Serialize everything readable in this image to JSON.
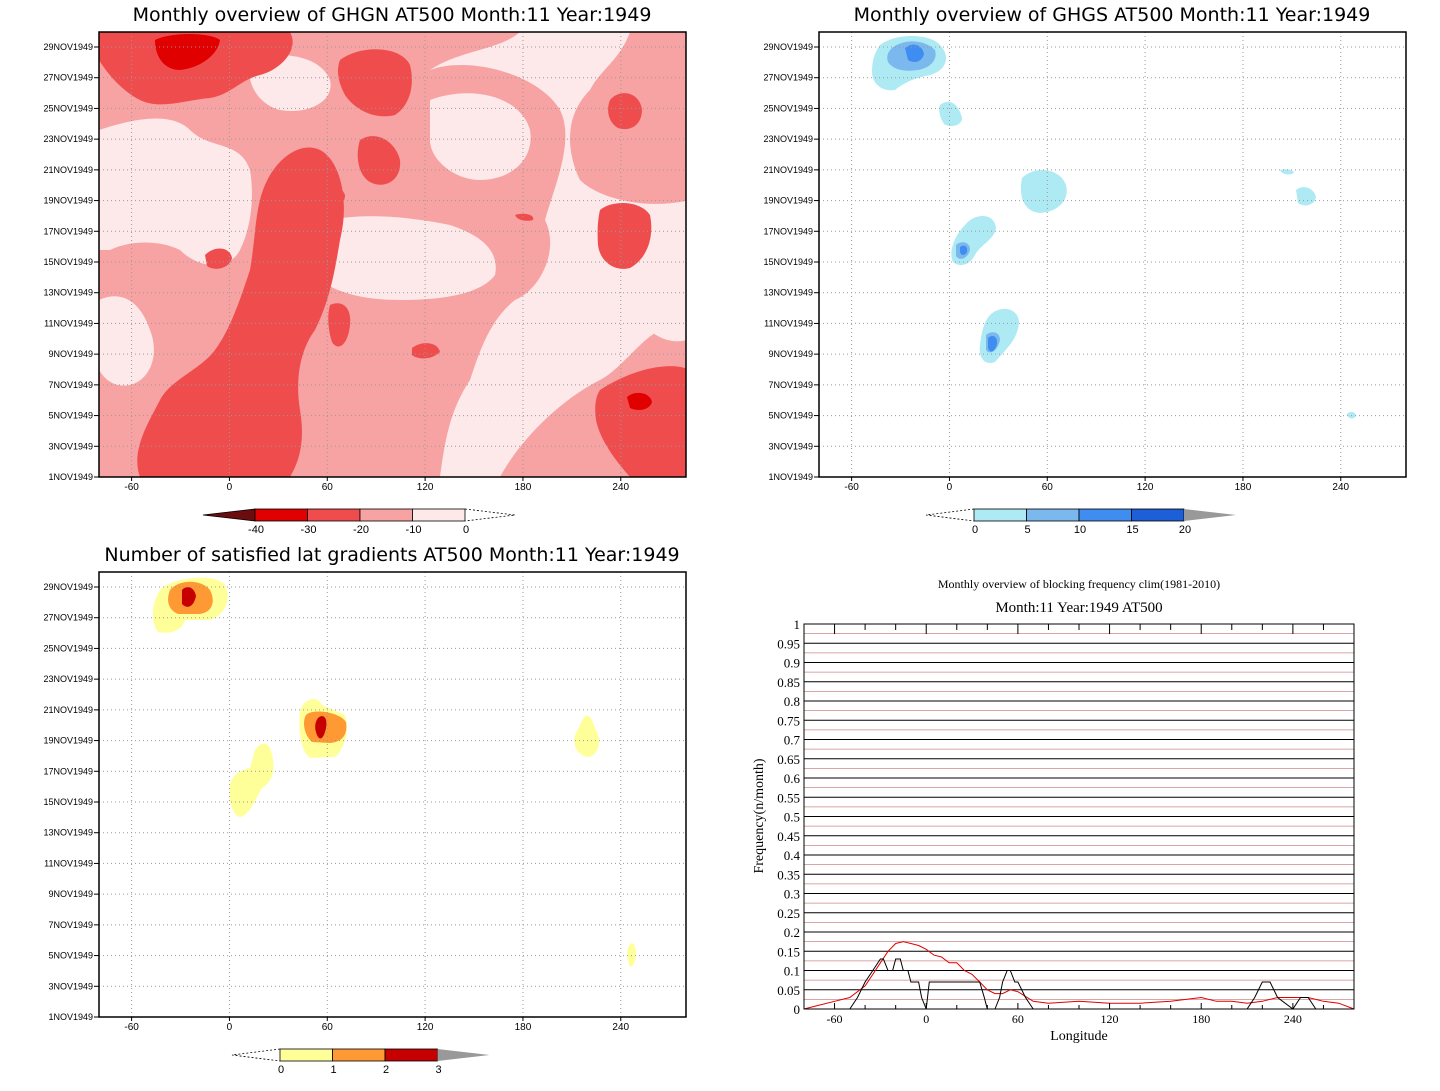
{
  "colors": {
    "ghgn": [
      "#6b0d0d",
      "#e00000",
      "#ef4d4d",
      "#f7a3a3",
      "#fde9e9"
    ],
    "ghgs": [
      "#aeeaf4",
      "#7ab8ee",
      "#3f8df0",
      "#1c5fd6",
      "#999999"
    ],
    "sat": [
      "#ffff99",
      "#ff9933",
      "#c60000",
      "#999999"
    ]
  },
  "chart_data": [
    {
      "type": "heatmap",
      "id": "ghgn",
      "title": "Monthly overview of GHGN AT500 Month:11 Year:1949",
      "y_ticks": [
        "1NOV1949",
        "3NOV1949",
        "5NOV1949",
        "7NOV1949",
        "9NOV1949",
        "11NOV1949",
        "13NOV1949",
        "15NOV1949",
        "17NOV1949",
        "19NOV1949",
        "21NOV1949",
        "23NOV1949",
        "25NOV1949",
        "27NOV1949",
        "29NOV1949"
      ],
      "x_ticks": [
        "-60",
        "0",
        "60",
        "120",
        "180",
        "240"
      ],
      "xlim": [
        -80,
        280
      ],
      "grid": true,
      "colorbar": {
        "ticks": [
          "-40",
          "-30",
          "-20",
          "-10",
          "0"
        ],
        "extend_left": true,
        "extend_right": true
      }
    },
    {
      "type": "heatmap",
      "id": "ghgs",
      "title": "Monthly overview of GHGS AT500 Month:11 Year:1949",
      "y_ticks": [
        "1NOV1949",
        "3NOV1949",
        "5NOV1949",
        "7NOV1949",
        "9NOV1949",
        "11NOV1949",
        "13NOV1949",
        "15NOV1949",
        "17NOV1949",
        "19NOV1949",
        "21NOV1949",
        "23NOV1949",
        "25NOV1949",
        "27NOV1949",
        "29NOV1949"
      ],
      "x_ticks": [
        "-60",
        "0",
        "60",
        "120",
        "180",
        "240"
      ],
      "xlim": [
        -80,
        280
      ],
      "grid": true,
      "colorbar": {
        "ticks": [
          "0",
          "5",
          "10",
          "15",
          "20"
        ],
        "extend_left": true,
        "extend_right": true
      }
    },
    {
      "type": "heatmap",
      "id": "sat",
      "title": "Number of satisfied lat gradients AT500 Month:11 Year:1949",
      "y_ticks": [
        "1NOV1949",
        "3NOV1949",
        "5NOV1949",
        "7NOV1949",
        "9NOV1949",
        "11NOV1949",
        "13NOV1949",
        "15NOV1949",
        "17NOV1949",
        "19NOV1949",
        "21NOV1949",
        "23NOV1949",
        "25NOV1949",
        "27NOV1949",
        "29NOV1949"
      ],
      "x_ticks": [
        "-60",
        "0",
        "60",
        "120",
        "180",
        "240"
      ],
      "xlim": [
        -80,
        280
      ],
      "grid": true,
      "colorbar": {
        "ticks": [
          "0",
          "1",
          "2",
          "3"
        ],
        "extend_left": true,
        "extend_right": true
      }
    },
    {
      "type": "line",
      "id": "freq",
      "title": "Monthly overview of blocking frequency clim(1981-2010)",
      "subtitle": "Month:11 Year:1949  AT500",
      "xlabel": "Longitude",
      "ylabel": "Frequency(n/month)",
      "xlim": [
        -80,
        280
      ],
      "ylim": [
        0,
        1
      ],
      "x_ticks": [
        "-60",
        "0",
        "60",
        "120",
        "180",
        "240"
      ],
      "y_ticks": [
        "0",
        "0.05",
        "0.1",
        "0.15",
        "0.2",
        "0.25",
        "0.3",
        "0.35",
        "0.4",
        "0.45",
        "0.5",
        "0.55",
        "0.6",
        "0.65",
        "0.7",
        "0.75",
        "0.8",
        "0.85",
        "0.9",
        "0.95",
        "1"
      ],
      "series": [
        {
          "color": "#e00000",
          "x": [
            -80,
            -70,
            -60,
            -50,
            -40,
            -35,
            -30,
            -25,
            -20,
            -15,
            -10,
            -5,
            0,
            5,
            10,
            15,
            20,
            25,
            30,
            35,
            40,
            45,
            50,
            55,
            60,
            70,
            80,
            100,
            120,
            140,
            160,
            180,
            190,
            200,
            210,
            220,
            230,
            240,
            250,
            260,
            270,
            280
          ],
          "y": [
            0,
            0.01,
            0.02,
            0.03,
            0.06,
            0.09,
            0.12,
            0.15,
            0.17,
            0.175,
            0.17,
            0.165,
            0.155,
            0.14,
            0.135,
            0.12,
            0.12,
            0.1,
            0.09,
            0.07,
            0.05,
            0.04,
            0.04,
            0.05,
            0.045,
            0.02,
            0.015,
            0.02,
            0.015,
            0.015,
            0.02,
            0.03,
            0.02,
            0.02,
            0.015,
            0.02,
            0.03,
            0.03,
            0.03,
            0.02,
            0.015,
            0
          ]
        },
        {
          "color": "#000000",
          "x": [
            -80,
            -50,
            -45,
            -40,
            -35,
            -30,
            -28,
            -25,
            -22,
            -20,
            -17,
            -15,
            -12,
            -10,
            -8,
            -5,
            -3,
            0,
            2,
            5,
            10,
            15,
            20,
            25,
            30,
            35,
            38,
            40,
            45,
            48,
            50,
            53,
            55,
            58,
            60,
            65,
            70,
            120,
            200,
            210,
            215,
            220,
            225,
            230,
            240,
            245,
            250,
            255,
            260,
            270,
            280
          ],
          "y": [
            0,
            0,
            0.03,
            0.07,
            0.1,
            0.13,
            0.13,
            0.1,
            0.1,
            0.13,
            0.13,
            0.1,
            0.1,
            0.07,
            0.07,
            0.07,
            0.03,
            0,
            0.07,
            0.07,
            0.07,
            0.07,
            0.07,
            0.07,
            0.07,
            0.07,
            0.03,
            0,
            0,
            0.03,
            0.07,
            0.1,
            0.1,
            0.07,
            0.07,
            0.03,
            0,
            0,
            0,
            0,
            0.03,
            0.07,
            0.07,
            0.03,
            0,
            0.03,
            0.03,
            0,
            0,
            0,
            0
          ]
        }
      ]
    }
  ]
}
